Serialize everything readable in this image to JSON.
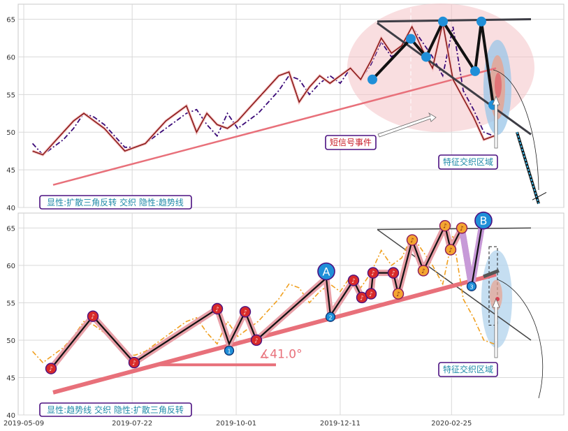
{
  "chart_data": [
    {
      "type": "line",
      "panel": "top",
      "ylim": [
        40,
        67
      ],
      "yticks": [
        40,
        45,
        50,
        55,
        60,
        65
      ],
      "grid": true,
      "x": [
        "2019-05-15",
        "2019-05-22",
        "2019-05-29",
        "2019-06-05",
        "2019-06-12",
        "2019-06-19",
        "2019-06-26",
        "2019-07-03",
        "2019-07-10",
        "2019-07-17",
        "2019-07-24",
        "2019-07-31",
        "2019-08-07",
        "2019-08-14",
        "2019-08-21",
        "2019-08-28",
        "2019-09-04",
        "2019-09-11",
        "2019-09-18",
        "2019-09-25",
        "2019-10-02",
        "2019-10-09",
        "2019-10-16",
        "2019-10-23",
        "2019-10-30",
        "2019-11-06",
        "2019-11-13",
        "2019-11-20",
        "2019-11-27",
        "2019-12-04",
        "2019-12-11",
        "2019-12-18",
        "2019-12-25",
        "2020-01-01",
        "2020-01-08",
        "2020-01-15",
        "2020-01-22",
        "2020-01-29",
        "2020-02-05",
        "2020-02-12",
        "2020-02-19",
        "2020-02-26",
        "2020-03-04",
        "2020-03-11",
        "2020-03-18",
        "2020-03-25"
      ],
      "series": [
        {
          "color": "#3b0a78",
          "style": "dashdot",
          "values": [
            48.5,
            47.0,
            48.0,
            49.0,
            50.5,
            52.5,
            52.0,
            51.0,
            49.5,
            48.0,
            48.0,
            48.5,
            49.5,
            50.5,
            51.5,
            52.5,
            53.0,
            51.0,
            49.5,
            52.5,
            50.5,
            51.5,
            52.5,
            54.0,
            55.5,
            57.5,
            57.0,
            55.0,
            56.5,
            57.5,
            56.5,
            58.5,
            57.0,
            59.0,
            62.0,
            60.0,
            61.0,
            64.0,
            62.0,
            60.0,
            57.5,
            64.0,
            55.5,
            53.0,
            50.0,
            49.5
          ]
        },
        {
          "color": "#8b1a1a",
          "style": "solid",
          "values": [
            47.5,
            47.0,
            48.5,
            50.0,
            51.5,
            52.5,
            51.5,
            50.5,
            49.0,
            47.5,
            48.0,
            48.5,
            50.0,
            51.5,
            52.5,
            53.5,
            50.0,
            52.5,
            51.0,
            50.5,
            51.5,
            53.0,
            54.5,
            56.0,
            57.5,
            58.0,
            54.0,
            56.0,
            57.5,
            56.5,
            57.5,
            58.5,
            57.0,
            59.5,
            62.5,
            60.5,
            61.5,
            64.0,
            61.0,
            58.5,
            64.5,
            57.0,
            54.5,
            52.0,
            49.0,
            49.5
          ]
        }
      ],
      "annotations": [
        "短信号事件",
        "特征交织区域"
      ],
      "legend_text": "显性:扩散三角反转 交织 隐性:趋势线"
    },
    {
      "type": "line",
      "panel": "bottom",
      "ylim": [
        40,
        67
      ],
      "yticks": [
        40,
        45,
        50,
        55,
        60,
        65
      ],
      "xticks": [
        "2019-05-09",
        "2019-07-22",
        "2019-10-01",
        "2019-12-11",
        "2020-02-25"
      ],
      "grid": true,
      "series": [
        {
          "color": "#f0a020",
          "style": "dashdot",
          "values": [
            48.5,
            47.0,
            48.0,
            49.0,
            50.5,
            52.5,
            52.0,
            51.0,
            49.5,
            48.0,
            48.0,
            48.5,
            49.5,
            50.5,
            51.5,
            52.5,
            53.0,
            51.0,
            49.5,
            52.5,
            50.5,
            51.5,
            52.5,
            54.0,
            55.5,
            57.5,
            57.0,
            55.0,
            56.5,
            57.5,
            56.5,
            58.5,
            57.0,
            59.0,
            62.0,
            60.0,
            61.0,
            64.0,
            62.0,
            60.0,
            57.5,
            64.0,
            55.5,
            53.0,
            50.0,
            49.5
          ]
        }
      ],
      "angle_label": "∡41.0°",
      "annotations": [
        "特征交织区域"
      ],
      "markers": [
        "A",
        "B",
        "1",
        "2",
        "3"
      ],
      "legend_text": "显性:趋势线 交织 隐性:扩散三角反转"
    }
  ]
}
